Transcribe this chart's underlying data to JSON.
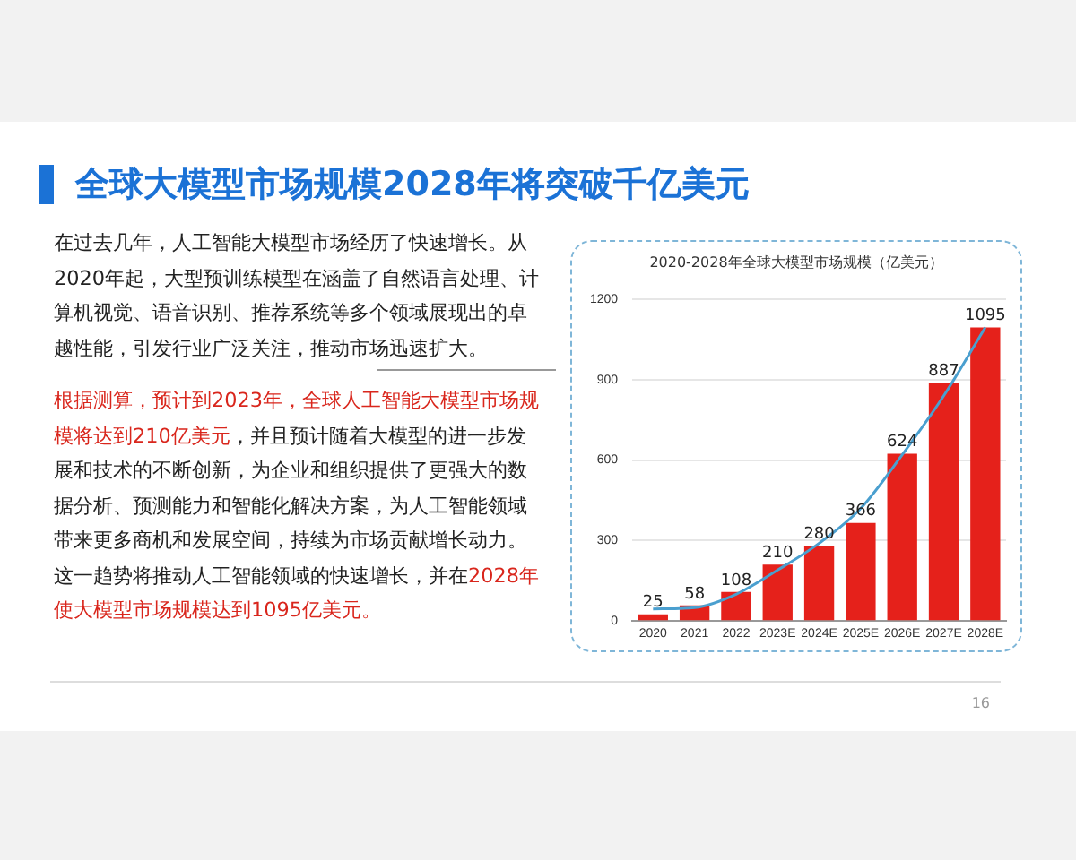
{
  "chart_data": {
    "type": "bar",
    "title": "全球大模型市场规模2028年将突破千亿美元",
    "subtitle": "2020-2028年全球大模型市场规模（亿美元）",
    "categories": [
      "2020",
      "2021",
      "2022",
      "2023E",
      "2024E",
      "2025E",
      "2026E",
      "2027E",
      "2028E"
    ],
    "series": [
      {
        "color": "#e5211b",
        "values": [
          25,
          58,
          108,
          210,
          280,
          366,
          624,
          887,
          1095
        ],
        "value_labels": [
          "25",
          "58",
          "108",
          "210",
          "280",
          "366",
          "624",
          "887",
          "1095"
        ]
      },
      {
        "type": "line",
        "color": "#4a9fcf",
        "values": [
          45,
          50,
          100,
          190,
          290,
          420,
          620,
          840,
          1095
        ]
      }
    ],
    "ylim": [
      0,
      1200
    ],
    "yticks": [
      0,
      300,
      600,
      900,
      1200
    ],
    "grid": "y",
    "legend": false,
    "marker": "none",
    "annotations": [
      "在过去几年，人工智能大模型市场经历了快速增长。从2020年起，大型预训练模型在涵盖了自然语言处理、计算机视觉、语音识别、推荐系统等多个领域展现出的卓越性能，引发行业广泛关注，推动市场迅速扩大。",
      "根据测算，预计到2023年，全球人工智能大模型市场规模将达到210亿美元",
      "，并且预计随着大模型的进一步发展和技术的不断创新，为企业和组织提供了更强大的数据分析、预测能力和智能化解决方案，为人工智能领域带来更多商机和发展空间，持续为市场贡献增长动力。这一趋势将推动人工智能领域的快速增长，并在",
      "2028年使大模型市场规模达到1095亿美元。",
      "16"
    ]
  }
}
